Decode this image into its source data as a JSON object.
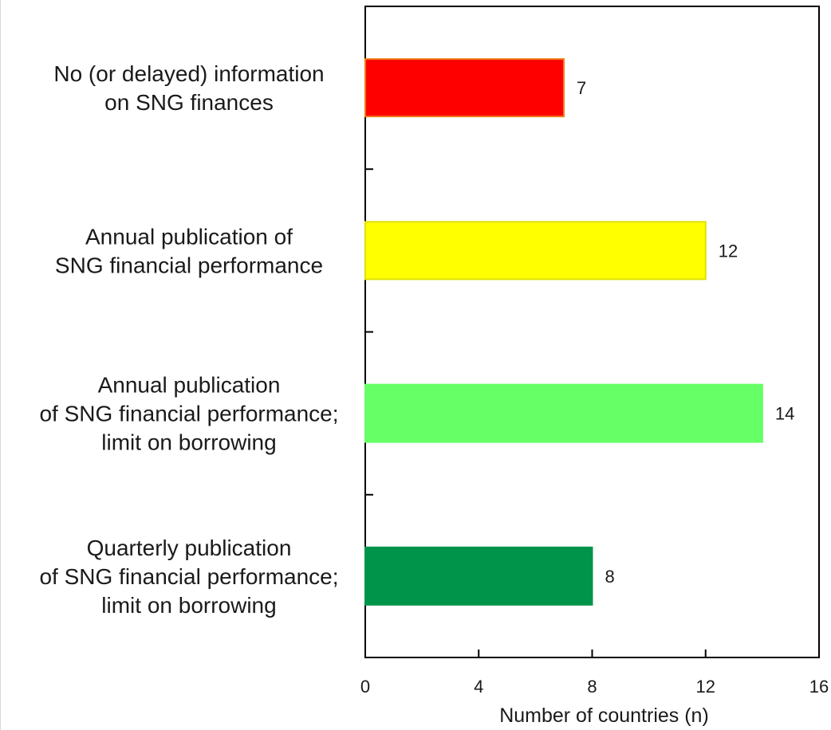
{
  "chart_data": {
    "type": "bar",
    "orientation": "horizontal",
    "categories": [
      "No (or delayed) information\non SNG finances",
      "Annual publication of\nSNG financial performance",
      "Annual publication\nof SNG financial performance;\nlimit on borrowing",
      "Quarterly publication\nof SNG financial performance;\nlimit on borrowing"
    ],
    "values": [
      7,
      12,
      14,
      8
    ],
    "data_labels": [
      "7",
      "12",
      "14",
      "8"
    ],
    "colors": [
      "#ff0000",
      "#ffff00",
      "#66ff66",
      "#00944a"
    ],
    "bar_edge_colors": [
      "#f07818",
      "#e0e000",
      "#66ff66",
      "#00944a"
    ],
    "xlabel": "Number of countries (n)",
    "ylabel": "",
    "title": "",
    "xlim": [
      0,
      16
    ],
    "xticks": [
      0,
      4,
      8,
      12,
      16
    ],
    "xtick_labels": [
      "0",
      "4",
      "8",
      "12",
      "16"
    ],
    "grid": false,
    "legend": "none"
  }
}
